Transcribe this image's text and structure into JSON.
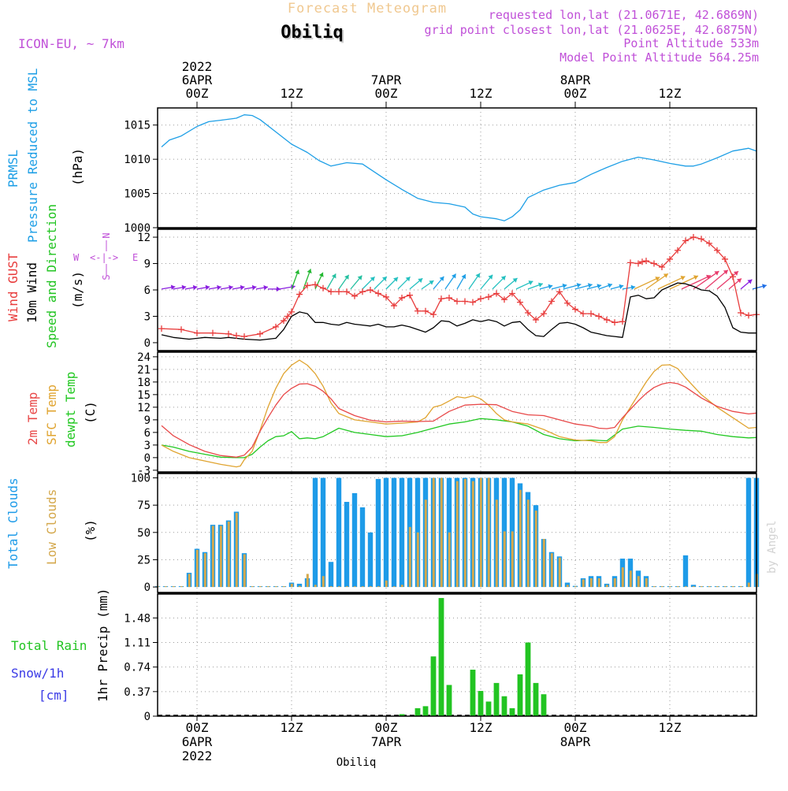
{
  "header": {
    "top_title": "Forecast Meteogram",
    "station": "Obiliq",
    "model": "ICON-EU, ~ 7km",
    "requested": "requested lon,lat (21.0671E, 42.6869N)",
    "gridpoint": "grid point closest lon,lat (21.0625E, 42.6875N)",
    "point_alt": "Point Altitude 533m",
    "model_alt": "Model Point Altitude 564.25m"
  },
  "footer": {
    "station": "Obiliq",
    "credit": "by Angel"
  },
  "colors": {
    "prmsl": "#1e9fe6",
    "gust": "#e83c3c",
    "wind": "#000000",
    "dir": "#22c422",
    "temp2m": "#e84848",
    "sfc": "#e0a430",
    "dewpt": "#22c822",
    "total_clouds": "#1e9be8",
    "low_clouds": "#d4a84c",
    "rain": "#22c422",
    "snow": "#3a3ae6",
    "purple": "#c050d8",
    "top": "#f0c890"
  },
  "time_axis": {
    "top": [
      {
        "hour": 0,
        "lines": [
          "2022",
          "6APR",
          "00Z"
        ]
      },
      {
        "hour": 12,
        "lines": [
          "12Z"
        ]
      },
      {
        "hour": 24,
        "lines": [
          "7APR",
          "00Z"
        ]
      },
      {
        "hour": 36,
        "lines": [
          "12Z"
        ]
      },
      {
        "hour": 48,
        "lines": [
          "8APR",
          "00Z"
        ]
      },
      {
        "hour": 60,
        "lines": [
          "12Z"
        ]
      }
    ],
    "bottom": [
      {
        "hour": 0,
        "lines": [
          "00Z",
          "6APR",
          "2022"
        ]
      },
      {
        "hour": 12,
        "lines": [
          "12Z"
        ]
      },
      {
        "hour": 24,
        "lines": [
          "00Z",
          "7APR"
        ]
      },
      {
        "hour": 36,
        "lines": [
          "12Z"
        ]
      },
      {
        "hour": 48,
        "lines": [
          "00Z",
          "8APR"
        ]
      },
      {
        "hour": 60,
        "lines": [
          "12Z"
        ]
      }
    ]
  },
  "panels": {
    "pressure": {
      "labels": [
        "PRMSL",
        "Pressure Reduced to MSL"
      ],
      "unit": "(hPa)",
      "ylim": [
        1000,
        1017.5
      ],
      "ticks": [
        "1000",
        "1005",
        "1010",
        "1015"
      ]
    },
    "wind": {
      "labels": [
        "Wind GUST",
        "10m Wind",
        "Speed and Direction"
      ],
      "unit": "(m/s)",
      "compass": {
        "w": "W",
        "e": "E",
        "n": "N",
        "s": "S",
        "arrow": "<-|->"
      },
      "ylim": [
        0,
        13
      ],
      "ticks": [
        "0",
        "3",
        "6",
        "9",
        "12"
      ]
    },
    "temp": {
      "labels": [
        "2m Temp",
        "SFC Temp",
        "dewpt Temp"
      ],
      "unit": "(C)",
      "ylim": [
        -3,
        24
      ],
      "ticks": [
        "-3",
        "0",
        "3",
        "6",
        "9",
        "12",
        "15",
        "18",
        "21",
        "24"
      ]
    },
    "clouds": {
      "labels": [
        "Total Clouds",
        "Low Clouds"
      ],
      "unit": "(%)",
      "ylim": [
        0,
        100
      ],
      "ticks": [
        "0",
        "25",
        "50",
        "75",
        "100"
      ]
    },
    "precip": {
      "labels": [
        "Total  Rain",
        "Snow/1h",
        "[cm]"
      ],
      "unit": "1hr Precip (mm)",
      "ylim": [
        0,
        1.85
      ],
      "ticks": [
        "0",
        "0.37",
        "0.74",
        "1.11",
        "1.48"
      ]
    }
  },
  "chart_data": {
    "type": "line",
    "title": "Forecast Meteogram - Obiliq",
    "x_unit": "hours from 2022-04-06 00Z",
    "xlim": [
      -5,
      71
    ],
    "prmsl": {
      "name": "PRMSL (hPa)",
      "x": [
        -4.5,
        -3.5,
        -2,
        0,
        1.5,
        3,
        5,
        6,
        7,
        8,
        10,
        12,
        14,
        15.5,
        17,
        19,
        21,
        24,
        26,
        28,
        30,
        32,
        34,
        35,
        36,
        38,
        39,
        40,
        41,
        42,
        44,
        46,
        48,
        50,
        52,
        54,
        56,
        58,
        60,
        62,
        63,
        64,
        66,
        68,
        70,
        71
      ],
      "values": [
        1011.8,
        1012.8,
        1013.4,
        1014.8,
        1015.5,
        1015.7,
        1016.0,
        1016.5,
        1016.4,
        1015.8,
        1014.0,
        1012.2,
        1011.0,
        1009.8,
        1009.0,
        1009.5,
        1009.3,
        1007.0,
        1005.6,
        1004.3,
        1003.7,
        1003.5,
        1003.0,
        1002.0,
        1001.6,
        1001.3,
        1001.0,
        1001.6,
        1002.6,
        1004.4,
        1005.5,
        1006.2,
        1006.6,
        1007.8,
        1008.8,
        1009.7,
        1010.3,
        1009.9,
        1009.4,
        1009.0,
        1009.0,
        1009.3,
        1010.2,
        1011.2,
        1011.6,
        1011.2
      ]
    },
    "wind_gust": {
      "name": "Wind GUST (m/s)",
      "x": [
        -4.5,
        -2,
        0,
        2,
        4,
        5,
        6,
        8,
        10,
        11,
        11.5,
        12,
        13,
        14,
        15,
        16,
        17,
        18,
        19,
        20,
        21,
        22,
        23,
        24,
        25,
        26,
        27,
        28,
        29,
        30,
        31,
        32,
        33,
        34,
        35,
        36,
        37,
        38,
        39,
        40,
        41,
        42,
        43,
        44,
        45,
        46,
        47,
        48,
        49,
        50,
        51,
        52,
        53,
        54,
        55,
        56,
        56.5,
        57,
        58,
        59,
        60,
        61,
        62,
        63,
        64,
        65,
        66,
        67,
        68,
        69,
        70,
        71
      ],
      "values": [
        1.6,
        1.5,
        1.1,
        1.1,
        1.0,
        0.8,
        0.7,
        1.0,
        1.8,
        2.5,
        3.0,
        3.5,
        5.5,
        6.5,
        6.6,
        6.2,
        5.8,
        5.8,
        5.8,
        5.3,
        5.8,
        6.0,
        5.6,
        5.2,
        4.2,
        5.1,
        5.4,
        3.6,
        3.6,
        3.2,
        5.0,
        5.1,
        4.7,
        4.7,
        4.6,
        5.0,
        5.2,
        5.6,
        4.9,
        5.6,
        4.6,
        3.4,
        2.6,
        3.3,
        4.7,
        5.8,
        4.5,
        3.8,
        3.3,
        3.3,
        3.0,
        2.6,
        2.3,
        2.4,
        9.1,
        9.0,
        9.2,
        9.3,
        9.0,
        8.6,
        9.5,
        10.5,
        11.6,
        12.0,
        11.8,
        11.3,
        10.5,
        9.5,
        7.5,
        3.4,
        3.1,
        3.2
      ]
    },
    "wind_speed": {
      "name": "10m Wind (m/s)",
      "x": [
        -4.5,
        -3,
        -1,
        1,
        3,
        4,
        6,
        8,
        10,
        11,
        12,
        13,
        14,
        15,
        16,
        17,
        18,
        19,
        20,
        21,
        22,
        23,
        24,
        25,
        26,
        27,
        28,
        29,
        30,
        31,
        32,
        33,
        34,
        35,
        36,
        37,
        38,
        39,
        40,
        41,
        42,
        43,
        44,
        45,
        46,
        47,
        48,
        49,
        50,
        51,
        52,
        53,
        54,
        55,
        56,
        57,
        58,
        59,
        60,
        61,
        62,
        63,
        64,
        65,
        66,
        67,
        68,
        69,
        70,
        71
      ],
      "values": [
        0.9,
        0.6,
        0.4,
        0.6,
        0.5,
        0.6,
        0.4,
        0.3,
        0.5,
        1.5,
        3.0,
        3.5,
        3.3,
        2.3,
        2.3,
        2.1,
        2.0,
        2.3,
        2.1,
        2.0,
        1.9,
        2.1,
        1.8,
        1.8,
        2.0,
        1.8,
        1.5,
        1.2,
        1.7,
        2.5,
        2.4,
        1.9,
        2.2,
        2.6,
        2.4,
        2.6,
        2.4,
        1.9,
        2.3,
        2.4,
        1.5,
        0.8,
        0.7,
        1.5,
        2.2,
        2.3,
        2.1,
        1.7,
        1.2,
        1.0,
        0.8,
        0.7,
        0.6,
        5.2,
        5.4,
        5.0,
        5.1,
        6.0,
        6.4,
        6.8,
        6.7,
        6.4,
        6.0,
        5.9,
        5.3,
        4.0,
        1.7,
        1.2,
        1.1,
        1.1
      ]
    },
    "temp_2m": {
      "name": "2m Temp (C)",
      "x": [
        -4.5,
        -3,
        -1,
        1,
        3,
        5,
        6,
        7,
        8,
        9,
        10,
        11,
        12,
        13,
        14,
        15,
        16,
        17,
        18,
        20,
        22,
        24,
        26,
        28,
        30,
        32,
        34,
        36,
        38,
        40,
        42,
        44,
        46,
        48,
        50,
        51,
        52,
        53,
        54,
        55,
        56,
        57,
        58,
        59,
        60,
        61,
        62,
        64,
        66,
        68,
        70,
        71
      ],
      "values": [
        7.6,
        5.2,
        3.1,
        1.5,
        0.5,
        0.1,
        0.6,
        2.5,
        6.3,
        9.5,
        12.5,
        15.0,
        16.5,
        17.5,
        17.6,
        17.0,
        15.8,
        14.0,
        11.7,
        10.0,
        8.9,
        8.5,
        8.7,
        8.6,
        8.7,
        11.0,
        12.5,
        12.7,
        12.6,
        11.0,
        10.2,
        10.0,
        9.0,
        8.0,
        7.5,
        7.0,
        6.9,
        7.2,
        9.5,
        11.5,
        13.5,
        15.3,
        16.7,
        17.5,
        17.9,
        17.6,
        16.8,
        14.2,
        12.2,
        11.0,
        10.4,
        10.6
      ]
    },
    "temp_sfc": {
      "name": "SFC Temp (C)",
      "x": [
        -4.5,
        -3,
        -1,
        1,
        3,
        5,
        5.5,
        6,
        7,
        8,
        9,
        10,
        11,
        12,
        13,
        14,
        15,
        16,
        17,
        18,
        20,
        22,
        24,
        26,
        28,
        29,
        30,
        31,
        32,
        33,
        34,
        35,
        36,
        37,
        38,
        39,
        40,
        42,
        44,
        46,
        48,
        50,
        51,
        52,
        53,
        54,
        55,
        56,
        57,
        58,
        59,
        60,
        61,
        62,
        64,
        66,
        68,
        70,
        71
      ],
      "values": [
        3.0,
        1.5,
        0.0,
        -0.8,
        -1.6,
        -2.2,
        -2.0,
        -0.5,
        1.5,
        6.5,
        12.0,
        16.5,
        20.0,
        22.0,
        23.2,
        22.0,
        20.0,
        17.0,
        13.0,
        10.5,
        9.0,
        8.5,
        8.0,
        8.2,
        8.5,
        9.5,
        12.0,
        12.5,
        13.5,
        14.5,
        14.2,
        14.7,
        14.0,
        12.5,
        10.5,
        9.0,
        8.5,
        8.0,
        6.7,
        5.0,
        4.2,
        4.0,
        3.6,
        3.6,
        5.0,
        9.0,
        12.0,
        15.0,
        18.0,
        20.5,
        22.0,
        22.1,
        21.2,
        19.0,
        15.0,
        12.0,
        9.5,
        7.0,
        7.2
      ]
    },
    "temp_dewpt": {
      "name": "dewpt Temp (C)",
      "x": [
        -4.5,
        -3,
        -1,
        1,
        3,
        5,
        6,
        7,
        8,
        9,
        10,
        11,
        12,
        13,
        14,
        15,
        16,
        18,
        20,
        22,
        24,
        26,
        28,
        30,
        32,
        34,
        36,
        38,
        40,
        42,
        44,
        46,
        48,
        50,
        52,
        54,
        56,
        58,
        60,
        62,
        64,
        66,
        68,
        70,
        71
      ],
      "values": [
        3.0,
        2.5,
        1.5,
        0.8,
        0.1,
        0.0,
        0.0,
        0.8,
        2.5,
        4.0,
        5.0,
        5.2,
        6.2,
        4.5,
        4.7,
        4.5,
        5.0,
        7.0,
        6.0,
        5.5,
        5.0,
        5.2,
        6.0,
        7.0,
        8.0,
        8.5,
        9.3,
        9.0,
        8.5,
        7.5,
        5.5,
        4.5,
        4.0,
        4.2,
        4.0,
        6.8,
        7.5,
        7.2,
        6.8,
        6.5,
        6.3,
        5.5,
        5.0,
        4.7,
        4.8
      ]
    },
    "total_clouds": {
      "name": "Total Clouds (%)",
      "x": [
        -5,
        -4,
        -3,
        -2,
        -1,
        0,
        1,
        2,
        3,
        4,
        5,
        6,
        7,
        8,
        9,
        10,
        11,
        12,
        13,
        14,
        15,
        16,
        17,
        18,
        19,
        20,
        21,
        22,
        23,
        24,
        25,
        26,
        27,
        28,
        29,
        30,
        31,
        32,
        33,
        34,
        35,
        36,
        37,
        38,
        39,
        40,
        41,
        42,
        43,
        44,
        45,
        46,
        47,
        48,
        49,
        50,
        51,
        52,
        53,
        54,
        55,
        56,
        57,
        58,
        59,
        60,
        61,
        62,
        63,
        64,
        65,
        66,
        67,
        68,
        69,
        70,
        71
      ],
      "values": [
        0,
        0,
        0,
        0,
        13,
        35,
        32,
        57,
        57,
        61,
        69,
        31,
        0,
        0,
        0,
        0,
        0,
        4,
        3,
        8,
        100,
        100,
        23,
        100,
        78,
        86,
        73,
        50,
        99,
        100,
        100,
        100,
        100,
        100,
        100,
        100,
        100,
        100,
        100,
        100,
        100,
        100,
        100,
        100,
        100,
        100,
        95,
        87,
        75,
        44,
        32,
        28,
        4,
        1,
        8,
        10,
        10,
        3,
        10,
        26,
        26,
        15,
        10,
        0,
        0,
        0,
        0,
        29,
        2,
        0,
        0,
        0,
        0,
        0,
        0,
        100,
        100
      ]
    },
    "low_clouds": {
      "name": "Low Clouds (%)",
      "x": [
        -5,
        -4,
        -3,
        -2,
        -1,
        0,
        1,
        2,
        3,
        4,
        5,
        6,
        7,
        8,
        9,
        10,
        11,
        12,
        13,
        14,
        15,
        16,
        17,
        18,
        19,
        20,
        21,
        22,
        23,
        24,
        25,
        26,
        27,
        28,
        29,
        30,
        31,
        32,
        33,
        34,
        35,
        36,
        37,
        38,
        39,
        40,
        41,
        42,
        43,
        44,
        45,
        46,
        47,
        48,
        49,
        50,
        51,
        52,
        53,
        54,
        55,
        56,
        57,
        58,
        59,
        60,
        61,
        62,
        63,
        64,
        65,
        66,
        67,
        68,
        69,
        70,
        71
      ],
      "values": [
        0,
        0,
        0,
        0,
        12,
        34,
        31,
        56,
        56,
        60,
        68,
        30,
        0,
        0,
        0,
        0,
        0,
        3,
        1,
        12,
        2,
        10,
        0,
        0,
        0,
        0,
        0,
        0,
        0,
        6,
        0,
        2,
        55,
        50,
        80,
        100,
        100,
        50,
        97,
        99,
        97,
        100,
        100,
        80,
        51,
        51,
        89,
        80,
        70,
        44,
        31,
        27,
        2,
        0,
        7,
        8,
        8,
        2,
        8,
        18,
        15,
        10,
        8,
        0,
        0,
        0,
        0,
        0,
        0,
        0,
        0,
        0,
        0,
        0,
        0,
        4,
        12
      ]
    },
    "precip": {
      "name": "1hr Precip (mm)",
      "x": [
        26,
        28,
        29,
        30,
        31,
        32,
        33,
        34,
        35,
        36,
        37,
        38,
        39,
        40,
        41,
        42,
        43,
        44
      ],
      "values": [
        0.03,
        0.12,
        0.15,
        0.9,
        1.78,
        0.47,
        0,
        0,
        0.7,
        0.38,
        0.22,
        0.5,
        0.3,
        0.12,
        0.63,
        1.11,
        0.5,
        0.33
      ]
    },
    "wind_dir": {
      "name": "10m Wind Direction",
      "x": [
        -4.5,
        -3,
        -1.5,
        0,
        1.5,
        3,
        4.5,
        6,
        7.5,
        9,
        10.5,
        12,
        13.5,
        15,
        16.5,
        18,
        19.5,
        21,
        22.5,
        24,
        25.5,
        27,
        28.5,
        30,
        31.5,
        33,
        34.5,
        36,
        37.5,
        39,
        40.5,
        42,
        43.5,
        45,
        46.5,
        48,
        49.5,
        51,
        52.5,
        54,
        55.5,
        57,
        58.5,
        60,
        61.5,
        63,
        64.5,
        66,
        67.5,
        69,
        70.5
      ],
      "direction_deg": [
        260,
        260,
        260,
        260,
        260,
        260,
        260,
        260,
        260,
        270,
        260,
        200,
        200,
        205,
        210,
        215,
        220,
        225,
        225,
        225,
        225,
        230,
        235,
        220,
        215,
        210,
        215,
        220,
        225,
        230,
        245,
        250,
        255,
        255,
        255,
        255,
        255,
        250,
        255,
        260,
        245,
        235,
        245,
        245,
        245,
        235,
        230,
        230,
        230,
        230,
        255
      ],
      "arrow_colors": [
        "#8a1ee0",
        "#8a1ee0",
        "#8a1ee0",
        "#8a1ee0",
        "#8a1ee0",
        "#8a1ee0",
        "#8a1ee0",
        "#8a1ee0",
        "#8a1ee0",
        "#8a1ee0",
        "#8a1ee0",
        "#22b830",
        "#22b830",
        "#22b830",
        "#24c0a0",
        "#24c0a0",
        "#24c0a0",
        "#24c0c0",
        "#24c0c0",
        "#24c0c0",
        "#24c0c0",
        "#24c0c0",
        "#24c0c0",
        "#1e9fe6",
        "#1e9fe6",
        "#1e9fe6",
        "#24c0c0",
        "#24c0c0",
        "#24c0c0",
        "#24c0c0",
        "#24c0c0",
        "#24c0c0",
        "#1e9fe6",
        "#1e9fe6",
        "#1e9fe6",
        "#1e9fe6",
        "#1e9fe6",
        "#1e9fe6",
        "#1e9fe6",
        "#1e9fe6",
        "#e0a430",
        "#e0a430",
        "#e0a430",
        "#e0a430",
        "#e83c6c",
        "#e83c6c",
        "#e83c6c",
        "#e83c6c",
        "#e83c6c",
        "#8a1ee0",
        "#1e6ee6"
      ]
    }
  }
}
